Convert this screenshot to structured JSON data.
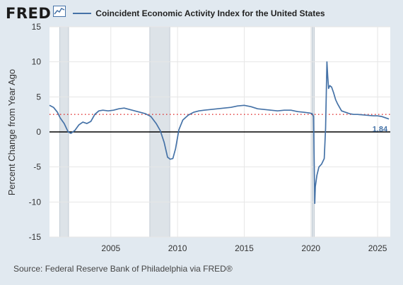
{
  "header": {
    "logo_text": "FRED",
    "logo_icon": "trend-line-icon"
  },
  "source_text": "Source: Federal Reserve Bank of Philadelphia via FRED®",
  "colors": {
    "background": "#e1e9f0",
    "plot_background": "#ffffff",
    "series": "#4572a7",
    "recession_shading": "#dde3e8",
    "reference_line": "#e03030",
    "zero_line": "#000000"
  },
  "chart_data": {
    "type": "line",
    "title": "",
    "ylabel": "Percent Change from Year Ago",
    "xlabel": "",
    "xlim": [
      2000.4,
      2025.95
    ],
    "ylim": [
      -15,
      15
    ],
    "y_ticks": [
      15,
      10,
      5,
      0,
      -5,
      -10,
      -15
    ],
    "x_ticks": [
      2005,
      2010,
      2015,
      2020,
      2025
    ],
    "grid": true,
    "legend": "top",
    "recessions": [
      [
        2001.17,
        2001.83
      ],
      [
        2007.92,
        2009.42
      ],
      [
        2020.08,
        2020.25
      ]
    ],
    "reference_line": {
      "value": 2.5,
      "style": "dotted"
    },
    "last_value_label": "1.84",
    "series": [
      {
        "name": "Coincident Economic Activity Index for the United States",
        "x": [
          2000.4,
          2000.7,
          2001.0,
          2001.2,
          2001.5,
          2001.8,
          2002.0,
          2002.3,
          2002.6,
          2002.9,
          2003.2,
          2003.5,
          2003.8,
          2004.1,
          2004.4,
          2004.8,
          2005.2,
          2005.6,
          2006.0,
          2006.4,
          2006.8,
          2007.2,
          2007.6,
          2008.0,
          2008.4,
          2008.7,
          2009.0,
          2009.25,
          2009.45,
          2009.65,
          2009.85,
          2010.1,
          2010.4,
          2010.8,
          2011.2,
          2011.6,
          2012.0,
          2012.5,
          2013.0,
          2013.5,
          2014.0,
          2014.5,
          2015.0,
          2015.5,
          2016.0,
          2016.5,
          2017.0,
          2017.5,
          2018.0,
          2018.5,
          2019.0,
          2019.5,
          2019.9,
          2020.1,
          2020.2,
          2020.29,
          2020.33,
          2020.45,
          2020.6,
          2020.8,
          2021.0,
          2021.1,
          2021.2,
          2021.26,
          2021.32,
          2021.42,
          2021.55,
          2021.7,
          2021.85,
          2022.0,
          2022.3,
          2022.6,
          2022.9,
          2023.2,
          2023.5,
          2023.8,
          2024.1,
          2024.4,
          2024.7,
          2025.0,
          2025.3,
          2025.6,
          2025.85
        ],
        "values": [
          3.8,
          3.5,
          2.8,
          2.0,
          1.2,
          0.0,
          -0.2,
          0.2,
          1.0,
          1.4,
          1.2,
          1.5,
          2.5,
          3.0,
          3.1,
          3.0,
          3.1,
          3.3,
          3.4,
          3.2,
          3.0,
          2.8,
          2.6,
          2.2,
          1.2,
          0.2,
          -1.5,
          -3.6,
          -3.9,
          -3.8,
          -2.4,
          0.3,
          1.7,
          2.4,
          2.8,
          3.0,
          3.1,
          3.2,
          3.3,
          3.4,
          3.5,
          3.7,
          3.8,
          3.6,
          3.3,
          3.2,
          3.1,
          3.0,
          3.1,
          3.1,
          2.9,
          2.8,
          2.7,
          2.6,
          2.2,
          -10.2,
          -7.8,
          -6.2,
          -5.0,
          -4.6,
          -3.8,
          0.5,
          10.0,
          8.0,
          6.2,
          6.6,
          6.4,
          5.6,
          4.6,
          4.0,
          3.0,
          2.8,
          2.6,
          2.5,
          2.5,
          2.45,
          2.4,
          2.35,
          2.3,
          2.3,
          2.2,
          2.0,
          1.84
        ]
      }
    ]
  }
}
